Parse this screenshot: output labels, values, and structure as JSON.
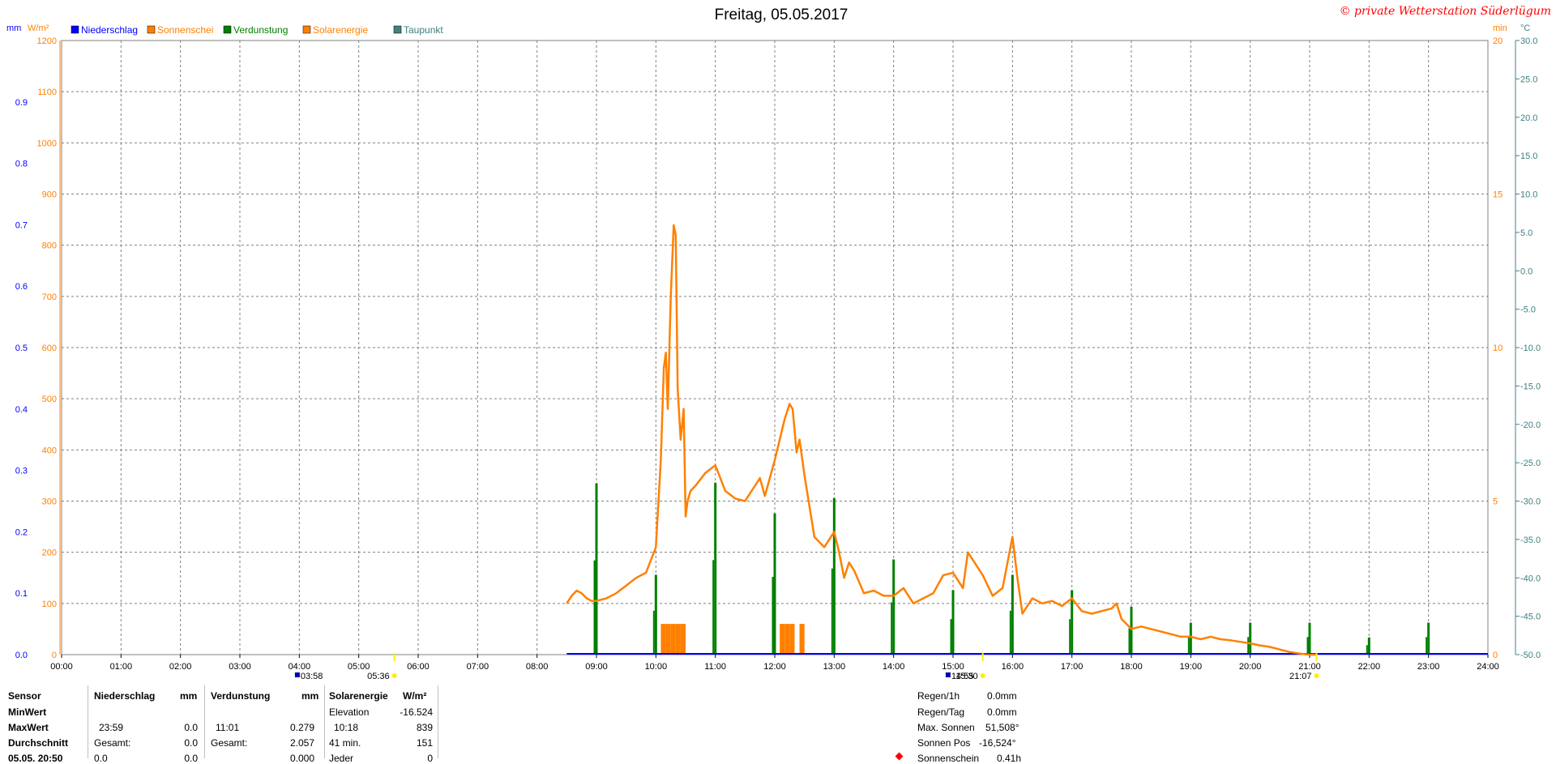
{
  "title": "Freitag, 05.05.2017",
  "copyright": "© private Wetterstation Süderlügum",
  "colors": {
    "niederschlag": "#0000ff",
    "sonnenschein": "#ff8000",
    "verdunstung": "#008000",
    "solarenergie": "#ff8000",
    "taupunkt": "#408080",
    "grid": "#808080",
    "copyright": "#ff0000"
  },
  "axes": {
    "left_outer_unit": "mm",
    "left_inner_unit": "W/m²",
    "right_inner_unit": "min",
    "right_outer_unit": "°C"
  },
  "chart_data": {
    "type": "line",
    "x_range": [
      "00:00",
      "24:00"
    ],
    "x_ticks": [
      "00:00",
      "01:00",
      "02:00",
      "03:00",
      "04:00",
      "05:00",
      "06:00",
      "07:00",
      "08:00",
      "09:00",
      "10:00",
      "11:00",
      "12:00",
      "13:00",
      "14:00",
      "15:00",
      "16:00",
      "17:00",
      "18:00",
      "19:00",
      "20:00",
      "21:00",
      "22:00",
      "23:00",
      "24:00"
    ],
    "y_mm": {
      "range": [
        0,
        1.0
      ],
      "ticks": [
        "0.0",
        "0.1",
        "0.2",
        "0.3",
        "0.4",
        "0.5",
        "0.6",
        "0.7",
        "0.8",
        "0.9"
      ]
    },
    "y_wm2": {
      "range": [
        0,
        1200
      ],
      "ticks": [
        "0",
        "100",
        "200",
        "300",
        "400",
        "500",
        "600",
        "700",
        "800",
        "900",
        "1000",
        "1100",
        "1200"
      ]
    },
    "y_min": {
      "range": [
        0,
        20
      ],
      "ticks": [
        "0",
        "5",
        "10",
        "15",
        "20"
      ]
    },
    "y_temp": {
      "range": [
        -50,
        30
      ],
      "ticks": [
        "-50.0",
        "-45.0",
        "-40.0",
        "-35.0",
        "-30.0",
        "-25.0",
        "-20.0",
        "-15.0",
        "-10.0",
        "-5.0",
        "0.0",
        "5.0",
        "10.0",
        "15.0",
        "20.0",
        "25.0",
        "30.0"
      ]
    },
    "legend": [
      "Niederschlag",
      "Sonnenschei",
      "Verdunstung",
      "Solarenergie",
      "Taupunkt"
    ],
    "series": [
      {
        "name": "Solarenergie",
        "unit": "W/m²",
        "x": [
          "08:30",
          "08:35",
          "08:40",
          "08:45",
          "08:50",
          "08:55",
          "09:00",
          "09:10",
          "09:20",
          "09:30",
          "09:40",
          "09:50",
          "10:00",
          "10:05",
          "10:08",
          "10:10",
          "10:12",
          "10:15",
          "10:18",
          "10:20",
          "10:22",
          "10:25",
          "10:28",
          "10:30",
          "10:32",
          "10:35",
          "10:40",
          "10:50",
          "11:00",
          "11:10",
          "11:20",
          "11:30",
          "11:40",
          "11:45",
          "11:50",
          "12:00",
          "12:05",
          "12:10",
          "12:15",
          "12:18",
          "12:20",
          "12:22",
          "12:25",
          "12:30",
          "12:35",
          "12:40",
          "12:50",
          "13:00",
          "13:05",
          "13:10",
          "13:15",
          "13:20",
          "13:30",
          "13:40",
          "13:50",
          "14:00",
          "14:10",
          "14:20",
          "14:30",
          "14:40",
          "14:50",
          "15:00",
          "15:10",
          "15:15",
          "15:20",
          "15:30",
          "15:40",
          "15:50",
          "15:55",
          "16:00",
          "16:05",
          "16:10",
          "16:20",
          "16:30",
          "16:40",
          "16:50",
          "17:00",
          "17:10",
          "17:20",
          "17:30",
          "17:40",
          "17:45",
          "17:50",
          "18:00",
          "18:10",
          "18:20",
          "18:30",
          "18:40",
          "18:50",
          "19:00",
          "19:10",
          "19:20",
          "19:30",
          "19:40",
          "19:50",
          "20:00",
          "20:10",
          "20:20",
          "20:30",
          "20:40",
          "20:50",
          "21:00",
          "21:07"
        ],
        "y": [
          100,
          115,
          125,
          120,
          110,
          105,
          105,
          110,
          120,
          135,
          150,
          160,
          210,
          380,
          560,
          590,
          480,
          700,
          839,
          820,
          520,
          420,
          480,
          270,
          300,
          320,
          330,
          355,
          370,
          320,
          305,
          300,
          330,
          345,
          310,
          380,
          420,
          460,
          490,
          480,
          440,
          395,
          420,
          350,
          290,
          230,
          210,
          240,
          200,
          150,
          180,
          165,
          120,
          125,
          115,
          115,
          130,
          100,
          110,
          120,
          155,
          160,
          130,
          200,
          185,
          155,
          115,
          130,
          180,
          230,
          150,
          80,
          110,
          100,
          105,
          95,
          110,
          85,
          80,
          85,
          90,
          100,
          70,
          50,
          55,
          50,
          45,
          40,
          35,
          35,
          30,
          35,
          30,
          28,
          25,
          22,
          18,
          15,
          10,
          5,
          2,
          0,
          0
        ]
      },
      {
        "name": "Verdunstung",
        "unit": "mm",
        "x": [
          "09:00",
          "10:00",
          "11:00",
          "12:00",
          "13:00",
          "14:00",
          "15:00",
          "16:00",
          "17:00",
          "18:00",
          "19:00",
          "20:00",
          "21:00",
          "22:00",
          "23:00"
        ],
        "y": [
          0.279,
          0.13,
          0.28,
          0.23,
          0.255,
          0.155,
          0.105,
          0.13,
          0.105,
          0.078,
          0.052,
          0.052,
          0.052,
          0.028,
          0.052
        ]
      },
      {
        "name": "Sonnenschein",
        "unit": "min",
        "x": [
          "10:05",
          "10:10",
          "10:15",
          "10:20",
          "10:25",
          "12:05",
          "12:10",
          "12:15",
          "12:25"
        ],
        "y": [
          1,
          1,
          1,
          1,
          1,
          1,
          1,
          1,
          1
        ]
      },
      {
        "name": "Niederschlag",
        "unit": "mm",
        "x": [
          "08:30",
          "21:07"
        ],
        "y": [
          0,
          0
        ]
      }
    ],
    "markers": [
      {
        "label": "15:30",
        "kind": "sun"
      },
      {
        "label": "03:58",
        "kind": "rain"
      },
      {
        "label": "05:36",
        "kind": "sun"
      },
      {
        "label": "14:55",
        "kind": "rain"
      },
      {
        "label": "21:07",
        "kind": "sun"
      }
    ]
  },
  "stats_table": {
    "headers": {
      "sensor": "Sensor",
      "niederschlag": "Niederschlag",
      "niederschlag_unit": "mm",
      "verdunstung": "Verdunstung",
      "verdunstung_unit": "mm",
      "solar": "Solarenergie",
      "solar_unit": "W/m²"
    },
    "rows": {
      "min_label": "MinWert",
      "max_label": "MaxWert",
      "avg_label": "Durchschnitt",
      "extra_label": "05.05. 20:50"
    },
    "niederschlag": {
      "max_time": "23:59",
      "max_value": "0.0",
      "sum_label": "Gesamt:",
      "sum_value": "0.0",
      "extra_value": "0.0",
      "extra_value2": "0.0"
    },
    "verdunstung": {
      "max_time": "11:01",
      "max_value": "0.279",
      "sum_label": "Gesamt:",
      "sum_value": "2.057",
      "extra_value": "0.000"
    },
    "solar": {
      "min_label": "Elevation",
      "min_value": "-16.524",
      "max_time": "10:18",
      "max_value": "839",
      "avg_label": "41 min.",
      "avg_value": "151",
      "extra_label": "Jeder",
      "extra_value": "0"
    }
  },
  "right_stats": {
    "rows": [
      {
        "label": "Regen/1h",
        "value": "0.0mm"
      },
      {
        "label": "Regen/Tag",
        "value": "0.0mm"
      },
      {
        "label": "Max. Sonnen",
        "value": "51,508°"
      },
      {
        "label": "Sonnen Pos",
        "value": "-16,524°"
      },
      {
        "label": "Sonnenschein",
        "value": "0.41h"
      }
    ]
  }
}
